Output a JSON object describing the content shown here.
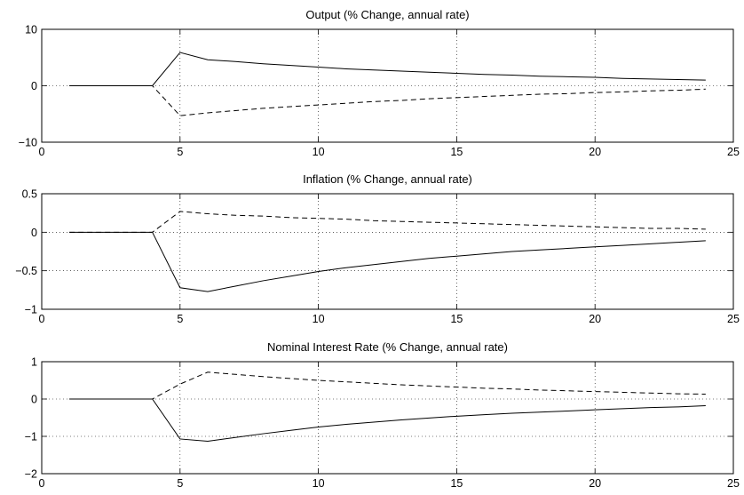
{
  "chart_data": [
    {
      "type": "line",
      "title": "Output (% Change, annual rate)",
      "xlabel": "",
      "ylabel": "",
      "xlim": [
        0,
        25
      ],
      "ylim": [
        -10,
        10
      ],
      "xticks": [
        0,
        5,
        10,
        15,
        20,
        25
      ],
      "yticks": [
        -10,
        0,
        10
      ],
      "grid": true,
      "x": [
        1,
        2,
        3,
        4,
        5,
        6,
        7,
        8,
        9,
        10,
        11,
        12,
        13,
        14,
        15,
        16,
        17,
        18,
        19,
        20,
        21,
        22,
        23,
        24
      ],
      "series": [
        {
          "style": "solid",
          "values": [
            0,
            0,
            0,
            0,
            5.9,
            4.6,
            4.3,
            3.9,
            3.6,
            3.3,
            3.0,
            2.8,
            2.6,
            2.4,
            2.2,
            2.0,
            1.9,
            1.7,
            1.6,
            1.5,
            1.3,
            1.2,
            1.1,
            1.0
          ]
        },
        {
          "style": "dashed",
          "values": [
            0,
            0,
            0,
            0,
            -5.3,
            -4.8,
            -4.4,
            -4.0,
            -3.7,
            -3.4,
            -3.1,
            -2.8,
            -2.6,
            -2.3,
            -2.1,
            -1.9,
            -1.7,
            -1.5,
            -1.4,
            -1.2,
            -1.1,
            -0.9,
            -0.8,
            -0.6
          ]
        }
      ]
    },
    {
      "type": "line",
      "title": "Inflation (% Change, annual rate)",
      "xlabel": "",
      "ylabel": "",
      "xlim": [
        0,
        25
      ],
      "ylim": [
        -1,
        0.5
      ],
      "xticks": [
        0,
        5,
        10,
        15,
        20,
        25
      ],
      "yticks": [
        -1,
        -0.5,
        0,
        0.5
      ],
      "grid": true,
      "x": [
        1,
        2,
        3,
        4,
        5,
        6,
        7,
        8,
        9,
        10,
        11,
        12,
        13,
        14,
        15,
        16,
        17,
        18,
        19,
        20,
        21,
        22,
        23,
        24
      ],
      "series": [
        {
          "style": "solid",
          "values": [
            0,
            0,
            0,
            0,
            -0.72,
            -0.77,
            -0.7,
            -0.63,
            -0.57,
            -0.51,
            -0.46,
            -0.42,
            -0.38,
            -0.34,
            -0.31,
            -0.28,
            -0.25,
            -0.23,
            -0.21,
            -0.19,
            -0.17,
            -0.15,
            -0.13,
            -0.11
          ]
        },
        {
          "style": "dashed",
          "values": [
            0,
            0,
            0,
            0,
            0.27,
            0.24,
            0.22,
            0.21,
            0.19,
            0.18,
            0.17,
            0.15,
            0.14,
            0.13,
            0.12,
            0.11,
            0.1,
            0.09,
            0.08,
            0.07,
            0.06,
            0.05,
            0.05,
            0.04
          ]
        }
      ]
    },
    {
      "type": "line",
      "title": "Nominal Interest Rate (% Change, annual rate)",
      "xlabel": "",
      "ylabel": "",
      "xlim": [
        0,
        25
      ],
      "ylim": [
        -2,
        1
      ],
      "xticks": [
        0,
        5,
        10,
        15,
        20,
        25
      ],
      "yticks": [
        -2,
        -1,
        0,
        1
      ],
      "grid": true,
      "x": [
        1,
        2,
        3,
        4,
        5,
        6,
        7,
        8,
        9,
        10,
        11,
        12,
        13,
        14,
        15,
        16,
        17,
        18,
        19,
        20,
        21,
        22,
        23,
        24
      ],
      "series": [
        {
          "style": "solid",
          "values": [
            0,
            0,
            0,
            0,
            -1.07,
            -1.13,
            -1.03,
            -0.93,
            -0.84,
            -0.75,
            -0.68,
            -0.62,
            -0.56,
            -0.51,
            -0.46,
            -0.42,
            -0.38,
            -0.35,
            -0.32,
            -0.29,
            -0.26,
            -0.23,
            -0.21,
            -0.18
          ]
        },
        {
          "style": "dashed",
          "values": [
            0,
            0,
            0,
            0,
            0.4,
            0.72,
            0.66,
            0.6,
            0.55,
            0.5,
            0.46,
            0.42,
            0.38,
            0.35,
            0.32,
            0.29,
            0.27,
            0.24,
            0.22,
            0.2,
            0.18,
            0.16,
            0.14,
            0.13
          ]
        }
      ]
    }
  ]
}
